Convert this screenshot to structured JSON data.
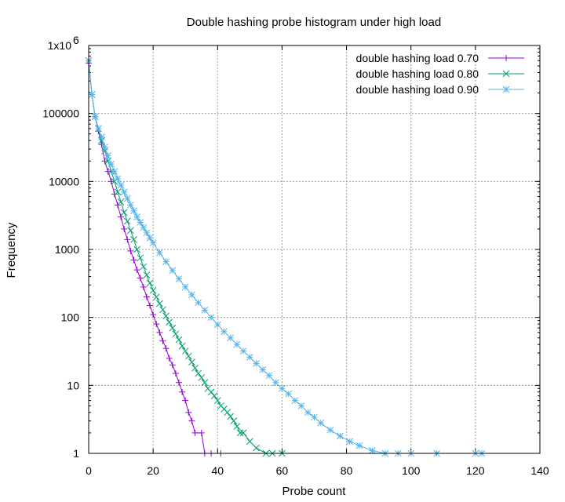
{
  "chart_data": {
    "type": "line",
    "title": "Double hashing probe histogram under high load",
    "xlabel": "Probe count",
    "ylabel": "Frequency",
    "xlim": [
      0,
      140
    ],
    "ylim": [
      1,
      1000000
    ],
    "yscale": "log",
    "grid": true,
    "legend_position": "top-right",
    "x_ticks": [
      "0",
      "20",
      "40",
      "60",
      "80",
      "100",
      "120",
      "140"
    ],
    "y_ticks": [
      "1",
      "10",
      "100",
      "1000",
      "10000",
      "100000"
    ],
    "y_top_tick": {
      "base": "1x10",
      "exponent": "6"
    },
    "series": [
      {
        "name": "double hashing load 0.70",
        "color": "#9400d3",
        "marker": "plus",
        "points": [
          [
            0,
            550000
          ],
          [
            1,
            190000
          ],
          [
            2,
            90000
          ],
          [
            3,
            55000
          ],
          [
            4,
            35000
          ],
          [
            5,
            20000
          ],
          [
            6,
            14000
          ],
          [
            7,
            10000
          ],
          [
            8,
            6500
          ],
          [
            9,
            4500
          ],
          [
            10,
            3000
          ],
          [
            11,
            2000
          ],
          [
            12,
            1400
          ],
          [
            13,
            950
          ],
          [
            14,
            700
          ],
          [
            15,
            500
          ],
          [
            16,
            380
          ],
          [
            17,
            280
          ],
          [
            18,
            200
          ],
          [
            19,
            150
          ],
          [
            20,
            110
          ],
          [
            21,
            80
          ],
          [
            22,
            60
          ],
          [
            23,
            45
          ],
          [
            24,
            35
          ],
          [
            25,
            25
          ],
          [
            26,
            20
          ],
          [
            27,
            15
          ],
          [
            28,
            11
          ],
          [
            29,
            8
          ],
          [
            30,
            6
          ],
          [
            31,
            4
          ],
          [
            32,
            3
          ],
          [
            33,
            2
          ],
          [
            35,
            2
          ],
          [
            36,
            1
          ],
          [
            38,
            1
          ],
          [
            41,
            1
          ]
        ]
      },
      {
        "name": "double hashing load 0.80",
        "color": "#009e73",
        "marker": "x",
        "points": [
          [
            0,
            600000
          ],
          [
            1,
            190000
          ],
          [
            2,
            90000
          ],
          [
            3,
            60000
          ],
          [
            4,
            40000
          ],
          [
            5,
            28000
          ],
          [
            6,
            20000
          ],
          [
            7,
            14000
          ],
          [
            8,
            10000
          ],
          [
            9,
            7000
          ],
          [
            10,
            5000
          ],
          [
            11,
            3500
          ],
          [
            12,
            2600
          ],
          [
            13,
            1900
          ],
          [
            14,
            1400
          ],
          [
            15,
            1000
          ],
          [
            16,
            750
          ],
          [
            17,
            560
          ],
          [
            18,
            420
          ],
          [
            19,
            320
          ],
          [
            20,
            250
          ],
          [
            21,
            200
          ],
          [
            22,
            160
          ],
          [
            23,
            130
          ],
          [
            24,
            105
          ],
          [
            25,
            85
          ],
          [
            26,
            70
          ],
          [
            27,
            57
          ],
          [
            28,
            47
          ],
          [
            29,
            38
          ],
          [
            30,
            32
          ],
          [
            31,
            27
          ],
          [
            32,
            22
          ],
          [
            33,
            18
          ],
          [
            34,
            15
          ],
          [
            35,
            13
          ],
          [
            36,
            11
          ],
          [
            37,
            9
          ],
          [
            38,
            8
          ],
          [
            39,
            7
          ],
          [
            40,
            6
          ],
          [
            41,
            5
          ],
          [
            42,
            4.5
          ],
          [
            43,
            4
          ],
          [
            44,
            3.5
          ],
          [
            45,
            3
          ],
          [
            46,
            2.5
          ],
          [
            47,
            2
          ],
          [
            48,
            2
          ],
          [
            50,
            1.5
          ],
          [
            52,
            1.2
          ],
          [
            55,
            1
          ],
          [
            57,
            1
          ],
          [
            60,
            1
          ]
        ]
      },
      {
        "name": "double hashing load 0.90",
        "color": "#56b4e9",
        "marker": "star",
        "points": [
          [
            0,
            600000
          ],
          [
            1,
            190000
          ],
          [
            2,
            90000
          ],
          [
            3,
            60000
          ],
          [
            4,
            45000
          ],
          [
            5,
            32000
          ],
          [
            6,
            24000
          ],
          [
            7,
            18000
          ],
          [
            8,
            14000
          ],
          [
            9,
            11000
          ],
          [
            10,
            8800
          ],
          [
            11,
            7000
          ],
          [
            12,
            5600
          ],
          [
            13,
            4500
          ],
          [
            14,
            3700
          ],
          [
            15,
            3000
          ],
          [
            16,
            2500
          ],
          [
            17,
            2100
          ],
          [
            18,
            1750
          ],
          [
            19,
            1480
          ],
          [
            20,
            1250
          ],
          [
            22,
            900
          ],
          [
            24,
            660
          ],
          [
            26,
            490
          ],
          [
            28,
            370
          ],
          [
            30,
            280
          ],
          [
            32,
            215
          ],
          [
            34,
            165
          ],
          [
            36,
            128
          ],
          [
            38,
            100
          ],
          [
            40,
            78
          ],
          [
            42,
            62
          ],
          [
            44,
            50
          ],
          [
            46,
            40
          ],
          [
            48,
            32
          ],
          [
            50,
            26
          ],
          [
            52,
            21
          ],
          [
            54,
            17
          ],
          [
            56,
            14
          ],
          [
            58,
            11
          ],
          [
            60,
            9
          ],
          [
            62,
            7.5
          ],
          [
            64,
            6
          ],
          [
            66,
            5
          ],
          [
            68,
            4
          ],
          [
            70,
            3.4
          ],
          [
            72,
            2.8
          ],
          [
            75,
            2.2
          ],
          [
            78,
            1.8
          ],
          [
            81,
            1.5
          ],
          [
            84,
            1.3
          ],
          [
            88,
            1.1
          ],
          [
            92,
            1
          ],
          [
            96,
            1
          ],
          [
            100,
            1
          ],
          [
            108,
            1
          ],
          [
            120,
            1
          ],
          [
            122,
            1
          ]
        ]
      }
    ]
  }
}
